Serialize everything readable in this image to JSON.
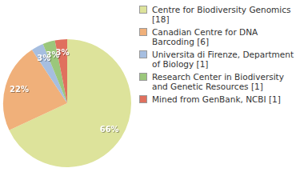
{
  "chart_data": {
    "type": "pie",
    "categories": [
      "Centre for Biodiversity Genomics [18]",
      "Canadian Centre for DNA Barcoding [6]",
      "Universita di Firenze, Department of Biology [1]",
      "Research Center in Biodiversity and Genetic Resources [1]",
      "Mined from GenBank, NCBI [1]"
    ],
    "values": [
      66,
      22,
      3,
      3,
      3
    ],
    "value_labels": [
      "66%",
      "22%",
      "3%",
      "3%",
      "3%"
    ],
    "colors": [
      "#dde39b",
      "#f0b07a",
      "#a6bee0",
      "#9bc77b",
      "#e0705e"
    ],
    "data_labels": true,
    "legend": "right"
  }
}
